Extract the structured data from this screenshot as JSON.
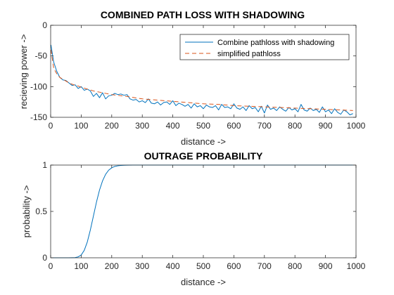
{
  "chart_data": [
    {
      "type": "line",
      "title": "COMBINED PATH LOSS WITH SHADOWING",
      "xlabel": "distance ->",
      "ylabel": "recieving power ->",
      "xlim": [
        0,
        1000
      ],
      "ylim": [
        -150,
        0
      ],
      "xticks": [
        0,
        100,
        200,
        300,
        400,
        500,
        600,
        700,
        800,
        900,
        1000
      ],
      "yticks": [
        0,
        -50,
        -100,
        -150
      ],
      "grid": false,
      "legend": "top-right",
      "series": [
        {
          "name": "Combine pathloss with shadowing",
          "style": "solid",
          "color": "#0072BD",
          "x": [
            1,
            10,
            20,
            30,
            40,
            50,
            60,
            70,
            80,
            90,
            100,
            110,
            120,
            130,
            140,
            150,
            160,
            170,
            180,
            190,
            200,
            210,
            220,
            230,
            240,
            250,
            260,
            270,
            280,
            290,
            300,
            310,
            320,
            330,
            340,
            350,
            360,
            370,
            380,
            390,
            400,
            410,
            420,
            430,
            440,
            450,
            460,
            470,
            480,
            490,
            500,
            510,
            520,
            530,
            540,
            550,
            560,
            570,
            580,
            590,
            600,
            610,
            620,
            630,
            640,
            650,
            660,
            670,
            680,
            690,
            700,
            710,
            720,
            730,
            740,
            750,
            760,
            770,
            780,
            790,
            800,
            810,
            820,
            830,
            840,
            850,
            860,
            870,
            880,
            890,
            900,
            910,
            920,
            930,
            940,
            950,
            960,
            970,
            980,
            990
          ],
          "y": [
            -32,
            -60,
            -75,
            -85,
            -89,
            -90,
            -94,
            -98,
            -97,
            -103,
            -100,
            -106,
            -104,
            -107,
            -116,
            -111,
            -118,
            -110,
            -120,
            -115,
            -114,
            -111,
            -113,
            -112,
            -114,
            -113,
            -120,
            -122,
            -121,
            -125,
            -123,
            -126,
            -120,
            -127,
            -128,
            -125,
            -130,
            -126,
            -125,
            -129,
            -123,
            -131,
            -127,
            -129,
            -132,
            -129,
            -135,
            -128,
            -133,
            -131,
            -136,
            -130,
            -133,
            -134,
            -131,
            -138,
            -129,
            -134,
            -133,
            -136,
            -128,
            -135,
            -137,
            -133,
            -139,
            -131,
            -136,
            -134,
            -141,
            -132,
            -143,
            -130,
            -137,
            -135,
            -139,
            -133,
            -137,
            -140,
            -134,
            -138,
            -136,
            -141,
            -129,
            -138,
            -140,
            -135,
            -139,
            -137,
            -142,
            -133,
            -141,
            -138,
            -144,
            -136,
            -142,
            -145,
            -138,
            -141,
            -146,
            -144
          ]
        },
        {
          "name": "simplified pathloss",
          "style": "dashed",
          "color": "#D95319",
          "x": [
            1,
            10,
            20,
            30,
            40,
            50,
            60,
            70,
            80,
            90,
            100,
            120,
            140,
            160,
            180,
            200,
            250,
            300,
            350,
            400,
            450,
            500,
            550,
            600,
            650,
            700,
            750,
            800,
            850,
            900,
            950,
            990
          ],
          "y": [
            -40,
            -70,
            -79,
            -85,
            -88,
            -91,
            -94,
            -96,
            -98,
            -99,
            -101,
            -104,
            -107,
            -109,
            -111,
            -113,
            -116,
            -120,
            -122,
            -124,
            -126,
            -128,
            -129,
            -131,
            -132,
            -133,
            -134,
            -135,
            -136,
            -137,
            -138,
            -139
          ]
        }
      ]
    },
    {
      "type": "line",
      "title": "OUTRAGE PROBABILITY",
      "xlabel": "distance ->",
      "ylabel": "probability ->",
      "xlim": [
        0,
        1000
      ],
      "ylim": [
        0,
        1
      ],
      "xticks": [
        0,
        100,
        200,
        300,
        400,
        500,
        600,
        700,
        800,
        900,
        1000
      ],
      "yticks": [
        0,
        0.5,
        1
      ],
      "grid": false,
      "series": [
        {
          "style": "solid",
          "color": "#0072BD",
          "x": [
            0,
            60,
            80,
            90,
            100,
            110,
            120,
            130,
            140,
            150,
            160,
            170,
            180,
            190,
            200,
            210,
            220,
            230,
            240,
            250,
            270,
            300,
            400,
            500,
            600,
            700,
            800,
            900,
            990
          ],
          "y": [
            0,
            0,
            0.002,
            0.01,
            0.03,
            0.08,
            0.17,
            0.3,
            0.45,
            0.6,
            0.73,
            0.83,
            0.9,
            0.945,
            0.97,
            0.985,
            0.992,
            0.996,
            0.998,
            0.999,
            1,
            1,
            1,
            1,
            1,
            1,
            1,
            1,
            1
          ]
        }
      ]
    }
  ]
}
